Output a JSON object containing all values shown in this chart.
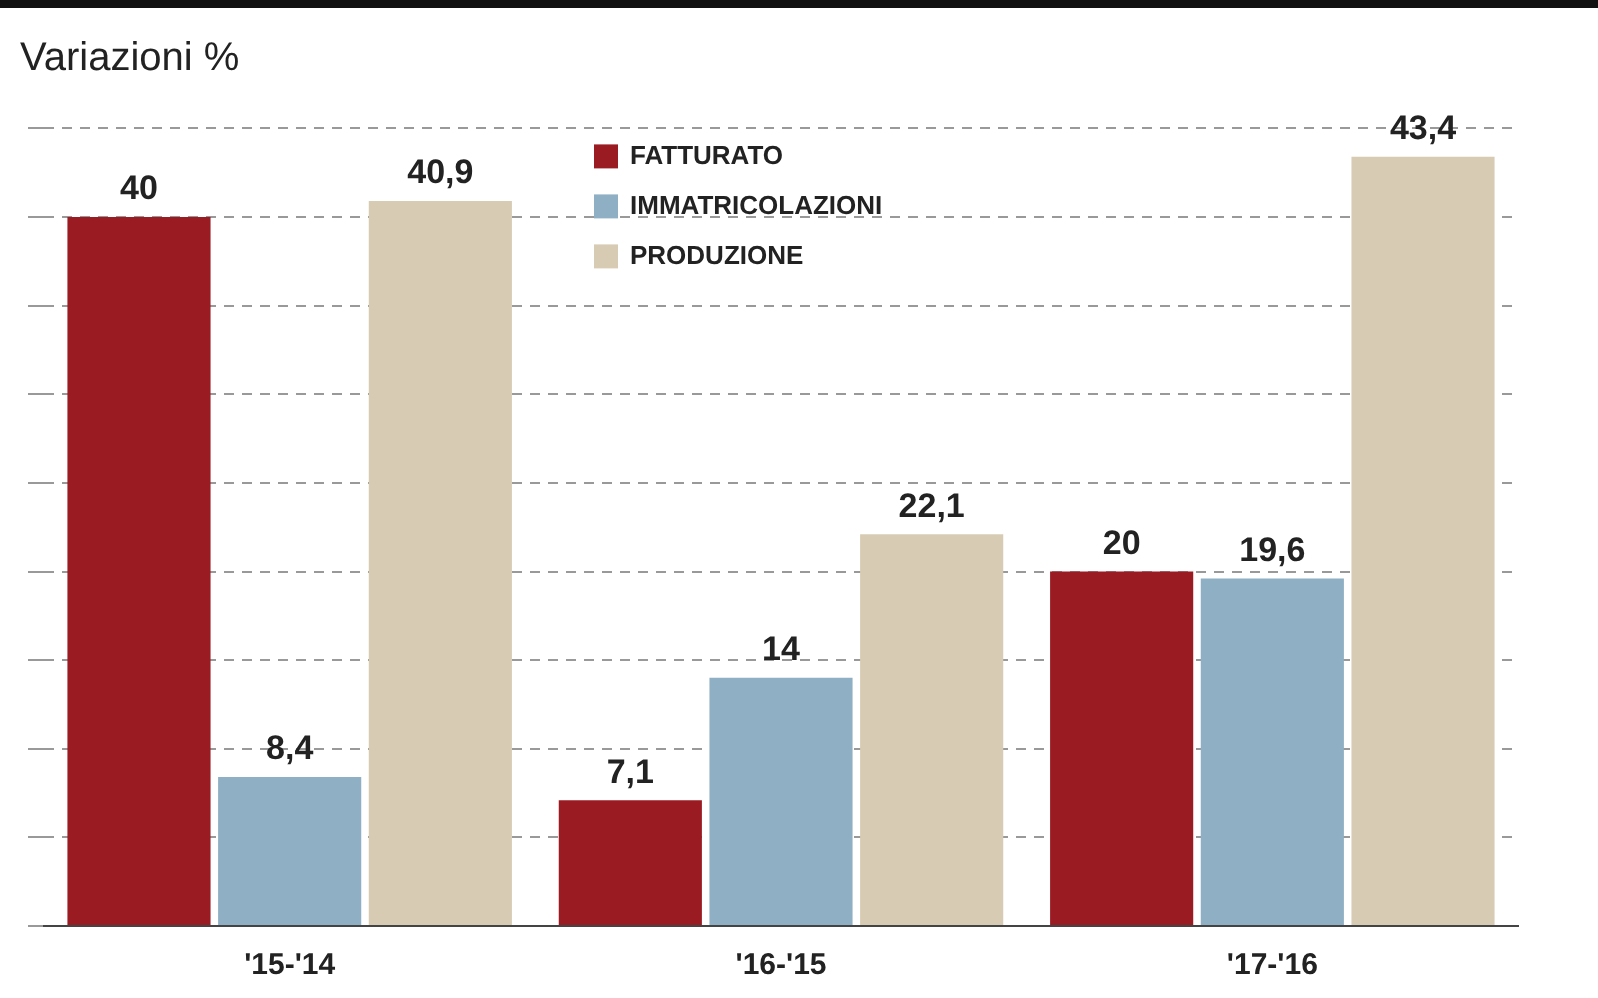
{
  "chart_data": {
    "type": "bar",
    "title": "Variazioni %",
    "categories": [
      "'15-'14",
      "'16-'15",
      "'17-'16"
    ],
    "series": [
      {
        "name": "FATTURATO",
        "color": "#9b1b22",
        "values": [
          40,
          7.1,
          20
        ],
        "value_labels": [
          "40",
          "7,1",
          "20"
        ]
      },
      {
        "name": "IMMATRICOLAZIONI",
        "color": "#8fb0c4",
        "values": [
          8.4,
          14,
          19.6
        ],
        "value_labels": [
          "8,4",
          "14",
          "19,6"
        ]
      },
      {
        "name": "PRODUZIONE",
        "color": "#d8cbb4",
        "values": [
          40.9,
          22.1,
          43.4
        ],
        "value_labels": [
          "40,9",
          "22,1",
          "43,4"
        ]
      }
    ],
    "ylim": [
      0,
      45
    ],
    "yticks": [
      {
        "value": 0,
        "label": null
      },
      {
        "value": 5,
        "label": null
      },
      {
        "value": 10,
        "label": null
      },
      {
        "value": 15,
        "label": null
      },
      {
        "value": 20,
        "label": null
      },
      {
        "value": 25,
        "label": null
      },
      {
        "value": 30,
        "label": null
      },
      {
        "value": 35,
        "label": null
      },
      {
        "value": 40,
        "label": null
      },
      {
        "value": 45,
        "label": null
      }
    ],
    "tick_labels": "x",
    "grid": "y",
    "legend": "top"
  }
}
